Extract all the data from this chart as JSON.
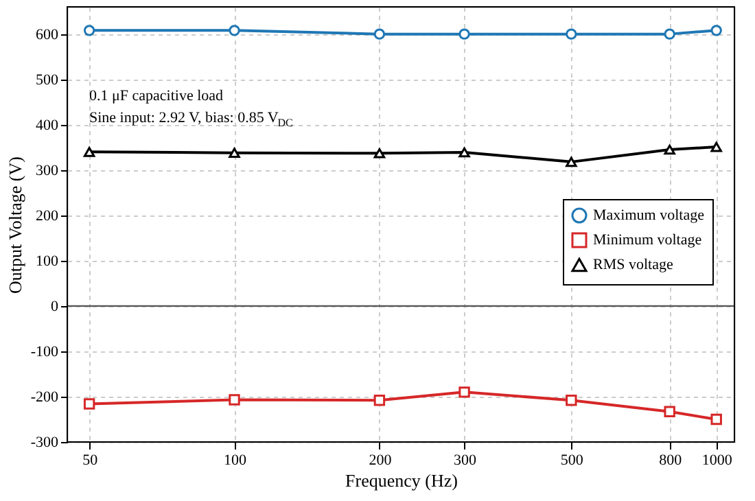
{
  "chart_data": {
    "type": "line",
    "xlabel": "Frequency (Hz)",
    "ylabel": "Output Voltage (V)",
    "x": [
      50,
      100,
      200,
      300,
      500,
      800,
      1000
    ],
    "series": [
      {
        "name": "Maximum voltage",
        "color": "#1f77b4",
        "marker": "circle",
        "values": [
          608,
          608,
          600,
          600,
          600,
          600,
          608
        ]
      },
      {
        "name": "Minimum voltage",
        "color": "#d62728",
        "marker": "square",
        "values": [
          -216,
          -207,
          -208,
          -190,
          -208,
          -233,
          -250
        ]
      },
      {
        "name": "RMS voltage",
        "color": "#000000",
        "marker": "triangle",
        "values": [
          340,
          338,
          337,
          339,
          318,
          345,
          351
        ]
      }
    ],
    "log": "x",
    "xlim": [
      45,
      1090
    ],
    "xticks": [
      50,
      100,
      200,
      300,
      500,
      800,
      {
        "value": 1000,
        "label": "1000"
      }
    ],
    "ylim": [
      -300,
      660
    ],
    "yticks": [
      -300,
      -200,
      -100,
      0,
      100,
      200,
      300,
      400,
      500,
      600
    ],
    "ref_lines": [
      {
        "axis": "y",
        "value": 0,
        "color": "#555555"
      }
    ],
    "annotations": [
      "0.1 μF capacitive load",
      "Sine input: 2.92 V, bias: 0.85 V$_{DC}$"
    ],
    "grid": true,
    "legend": "right",
    "line_style": "solid"
  }
}
